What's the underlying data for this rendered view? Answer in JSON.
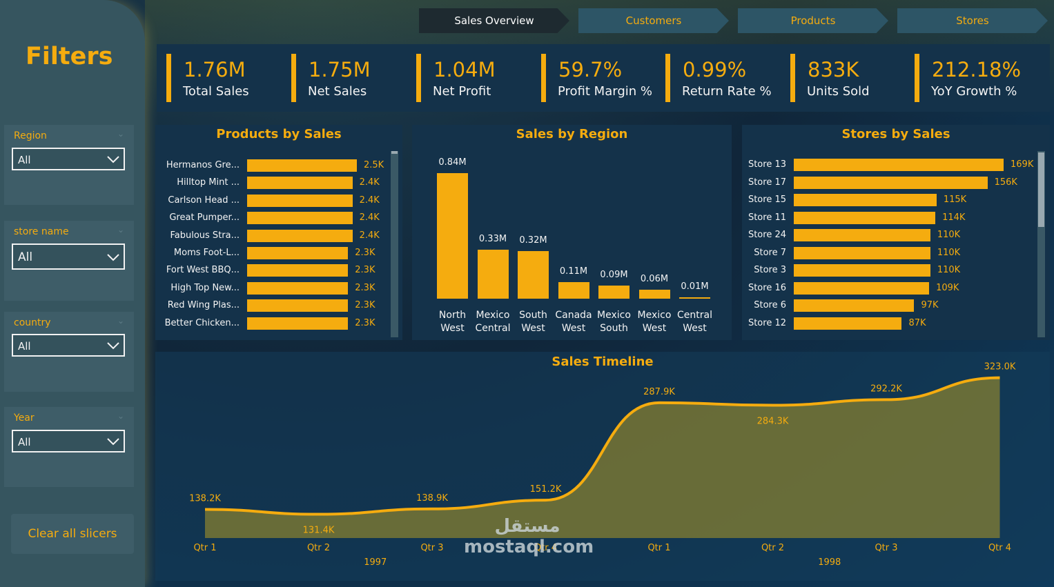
{
  "sidebar": {
    "title": "Filters",
    "slicers": [
      {
        "label": "Region",
        "value": "All"
      },
      {
        "label": "store name",
        "value": "All"
      },
      {
        "label": "country",
        "value": "All"
      },
      {
        "label": "Year",
        "value": "All"
      }
    ],
    "clear_label": "Clear all slicers"
  },
  "nav": {
    "tabs": [
      {
        "label": "Sales Overview",
        "active": true
      },
      {
        "label": "Customers",
        "active": false
      },
      {
        "label": "Products",
        "active": false
      },
      {
        "label": "Stores",
        "active": false
      }
    ]
  },
  "kpis": [
    {
      "value": "1.76M",
      "label": "Total Sales"
    },
    {
      "value": "1.75M",
      "label": "Net Sales"
    },
    {
      "value": "1.04M",
      "label": "Net Profit"
    },
    {
      "value": "59.7%",
      "label": "Profit Margin %"
    },
    {
      "value": "0.99%",
      "label": "Return Rate %"
    },
    {
      "value": "833K",
      "label": "Units Sold"
    },
    {
      "value": "212.18%",
      "label": "YoY Growth %"
    }
  ],
  "colors": {
    "accent": "#f5ac0f",
    "panel": "#14324a",
    "sidebar": "#36555f"
  },
  "chart_data": [
    {
      "type": "bar",
      "orientation": "horizontal",
      "title": "Products by Sales",
      "categories": [
        "Hermanos Gre...",
        "Hilltop Mint ...",
        "Carlson Head ...",
        "Great Pumper...",
        "Fabulous Stra...",
        "Moms Foot-L...",
        "Fort West BBQ...",
        "High Top New...",
        "Red Wing Plas...",
        "Better Chicken..."
      ],
      "values": [
        2.5,
        2.4,
        2.4,
        2.4,
        2.4,
        2.3,
        2.3,
        2.3,
        2.3,
        2.3
      ],
      "value_labels": [
        "2.5K",
        "2.4K",
        "2.4K",
        "2.4K",
        "2.4K",
        "2.3K",
        "2.3K",
        "2.3K",
        "2.3K",
        "2.3K"
      ]
    },
    {
      "type": "bar",
      "title": "Sales by Region",
      "categories": [
        [
          "North",
          "West"
        ],
        [
          "Mexico",
          "Central"
        ],
        [
          "South",
          "West"
        ],
        [
          "Canada",
          "West"
        ],
        [
          "Mexico",
          "South"
        ],
        [
          "Mexico",
          "West"
        ],
        [
          "Central",
          "West"
        ]
      ],
      "values": [
        0.84,
        0.33,
        0.32,
        0.11,
        0.09,
        0.06,
        0.01
      ],
      "value_labels": [
        "0.84M",
        "0.33M",
        "0.32M",
        "0.11M",
        "0.09M",
        "0.06M",
        "0.01M"
      ]
    },
    {
      "type": "bar",
      "orientation": "horizontal",
      "title": "Stores by Sales",
      "categories": [
        "Store 13",
        "Store 17",
        "Store 15",
        "Store 11",
        "Store 24",
        "Store 7",
        "Store 3",
        "Store 16",
        "Store 6",
        "Store 12"
      ],
      "values": [
        169,
        156,
        115,
        114,
        110,
        110,
        110,
        109,
        97,
        87
      ],
      "value_labels": [
        "169K",
        "156K",
        "115K",
        "114K",
        "110K",
        "110K",
        "110K",
        "109K",
        "97K",
        "87K"
      ]
    },
    {
      "type": "area",
      "title": "Sales Timeline",
      "x": [
        "Qtr 1",
        "Qtr 2",
        "Qtr 3",
        "Qtr 4",
        "Qtr 1",
        "Qtr 2",
        "Qtr 3",
        "Qtr 4"
      ],
      "years": [
        "1997",
        "1998"
      ],
      "values": [
        138.2,
        131.4,
        138.9,
        151.2,
        287.9,
        284.3,
        292.2,
        323.0
      ],
      "value_labels": [
        "138.2K",
        "131.4K",
        "138.9K",
        "151.2K",
        "287.9K",
        "284.3K",
        "292.2K",
        "323.0K"
      ]
    }
  ],
  "watermark": {
    "arabic": "مستقل",
    "latin": "mostaql.com"
  }
}
